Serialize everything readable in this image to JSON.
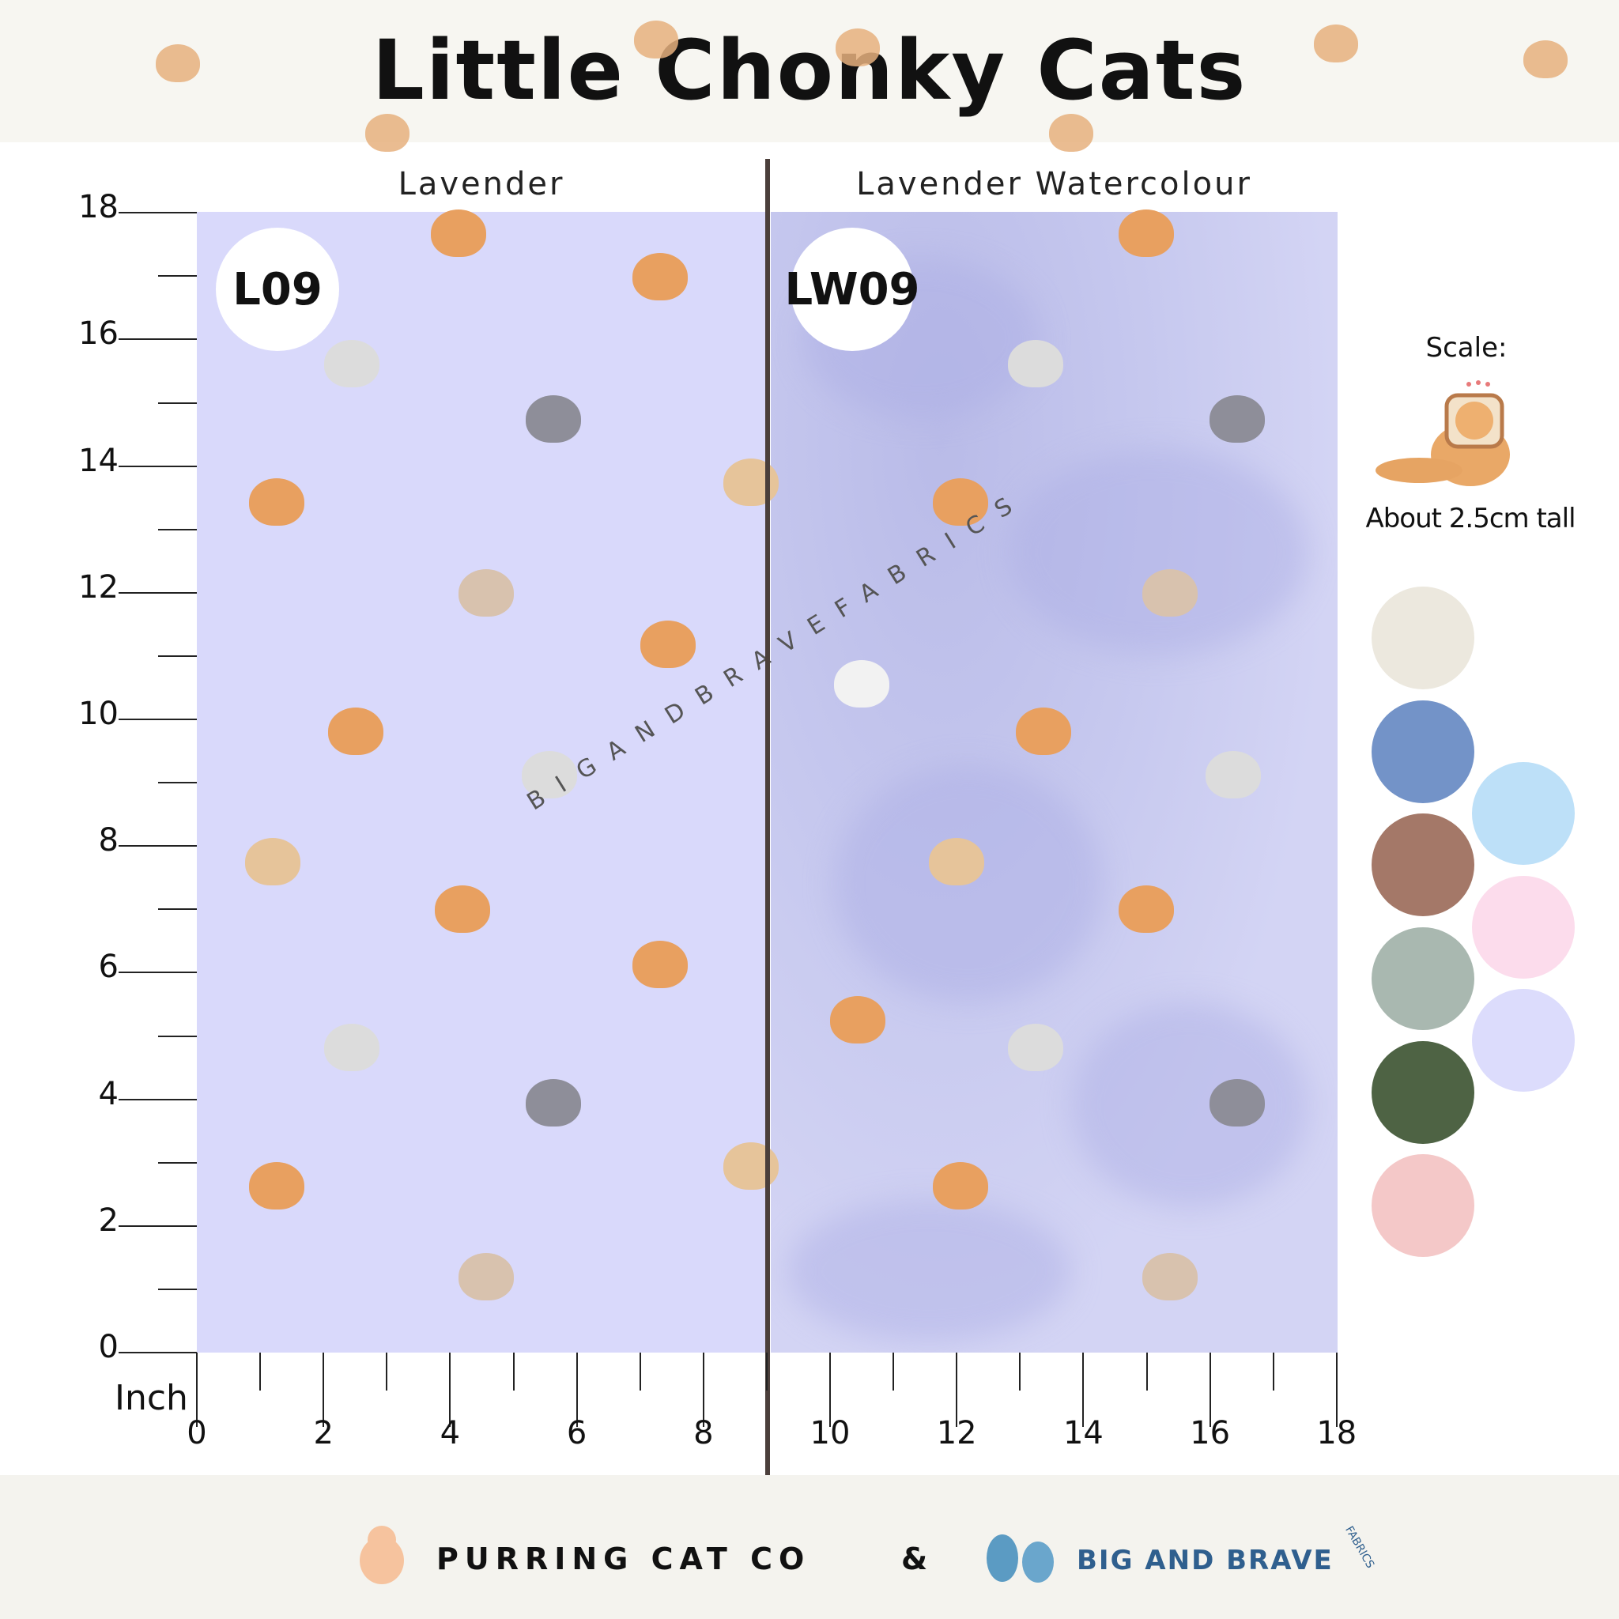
{
  "header": {
    "title": "Little Chonky Cats"
  },
  "panels": [
    {
      "label": "Lavender",
      "code": "L09",
      "color": "#d9d9fb"
    },
    {
      "label": "Lavender Watercolour",
      "code": "LW09",
      "color": "#c5c7ee"
    }
  ],
  "axis": {
    "unit": "Inch",
    "y_ticks": [
      "0",
      "2",
      "4",
      "6",
      "8",
      "10",
      "12",
      "14",
      "16",
      "18"
    ],
    "x_ticks": [
      "0",
      "2",
      "4",
      "6",
      "8",
      "10",
      "12",
      "14",
      "16",
      "18"
    ]
  },
  "scale": {
    "label": "Scale:",
    "caption": "About 2.5cm tall"
  },
  "watermark": "BIGANDBRAVEFABRICS",
  "palette": [
    "#ece8de",
    "#7393c8",
    "#a47868",
    "#a9b8b0",
    "#4e6344",
    "#f4c8c8",
    "#bde0f8",
    "#fcdcec",
    "#dcdcfc"
  ],
  "footer": {
    "brand1": "PURRING CAT CO",
    "amp": "&",
    "brand2": "BIG AND BRAVE",
    "brand2_sub": "FABRICS"
  }
}
